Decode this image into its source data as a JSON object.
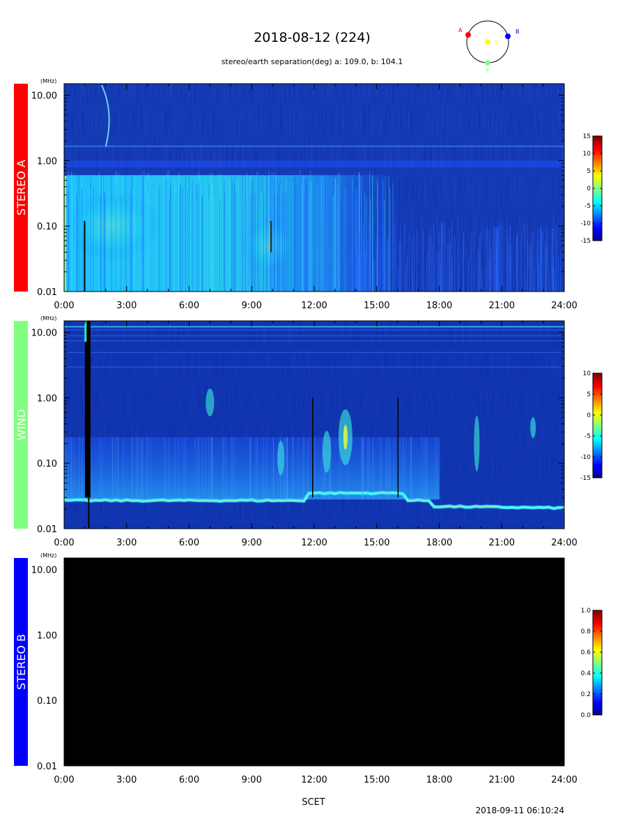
{
  "header": {
    "title": "2018-08-12 (224)",
    "subtitle": "stereo/earth separation(deg) a: 109.0, b: 104.1"
  },
  "orbit": {
    "labels": {
      "a": "A",
      "b": "B",
      "s": "S",
      "e": "E"
    },
    "colors": {
      "a": "#ff0000",
      "b": "#0000ff",
      "s": "#ffff00",
      "e": "#80ff80"
    },
    "angles_deg": {
      "a": 109.0,
      "b": 104.1
    }
  },
  "footer": {
    "xlabel": "SCET",
    "timestamp": "2018-09-11 06:10:24"
  },
  "chart_data": [
    {
      "type": "heatmap",
      "name": "STEREO A",
      "label_color": "#ff0000",
      "label_text_color": "#ffffff",
      "unit_label": "(MHz)",
      "x_ticks": [
        "0:00",
        "3:00",
        "6:00",
        "9:00",
        "12:00",
        "15:00",
        "18:00",
        "21:00",
        "24:00"
      ],
      "y_ticks": [
        "10.00",
        "1.00",
        "0.10",
        "0.01"
      ],
      "y_scale": "log",
      "ylim": [
        0.01,
        15
      ],
      "xlim_hours": [
        0,
        24
      ],
      "colorbar": {
        "ticks": [
          "15",
          "10",
          "5",
          "0",
          "-5",
          "-10",
          "-15"
        ],
        "range": [
          -15,
          15
        ]
      },
      "background_color": "#0a2ca8"
    },
    {
      "type": "heatmap",
      "name": "WIND",
      "label_color": "#80ff80",
      "label_text_color": "#ffffff",
      "unit_label": "(MHz)",
      "x_ticks": [
        "0:00",
        "3:00",
        "6:00",
        "9:00",
        "12:00",
        "15:00",
        "18:00",
        "21:00",
        "24:00"
      ],
      "y_ticks": [
        "10.00",
        "1.00",
        "0.10",
        "0.01"
      ],
      "y_scale": "log",
      "ylim": [
        0.01,
        15
      ],
      "xlim_hours": [
        0,
        24
      ],
      "colorbar": {
        "ticks": [
          "10",
          "5",
          "0",
          "-5",
          "-10",
          "-15"
        ],
        "range": [
          -15,
          10
        ]
      },
      "background_color": "#0a2ca8"
    },
    {
      "type": "heatmap",
      "name": "STEREO B",
      "label_color": "#0000ff",
      "label_text_color": "#ffffff",
      "unit_label": "(MHz)",
      "x_ticks": [
        "0:00",
        "3:00",
        "6:00",
        "9:00",
        "12:00",
        "15:00",
        "18:00",
        "21:00",
        "24:00"
      ],
      "y_ticks": [
        "10.00",
        "1.00",
        "0.10",
        "0.01"
      ],
      "y_scale": "log",
      "ylim": [
        0.01,
        15
      ],
      "xlim_hours": [
        0,
        24
      ],
      "colorbar": {
        "ticks": [
          "1.0",
          "0.8",
          "0.6",
          "0.4",
          "0.2",
          "0.0"
        ],
        "range": [
          0,
          1
        ]
      },
      "background_color": "#000000"
    }
  ]
}
